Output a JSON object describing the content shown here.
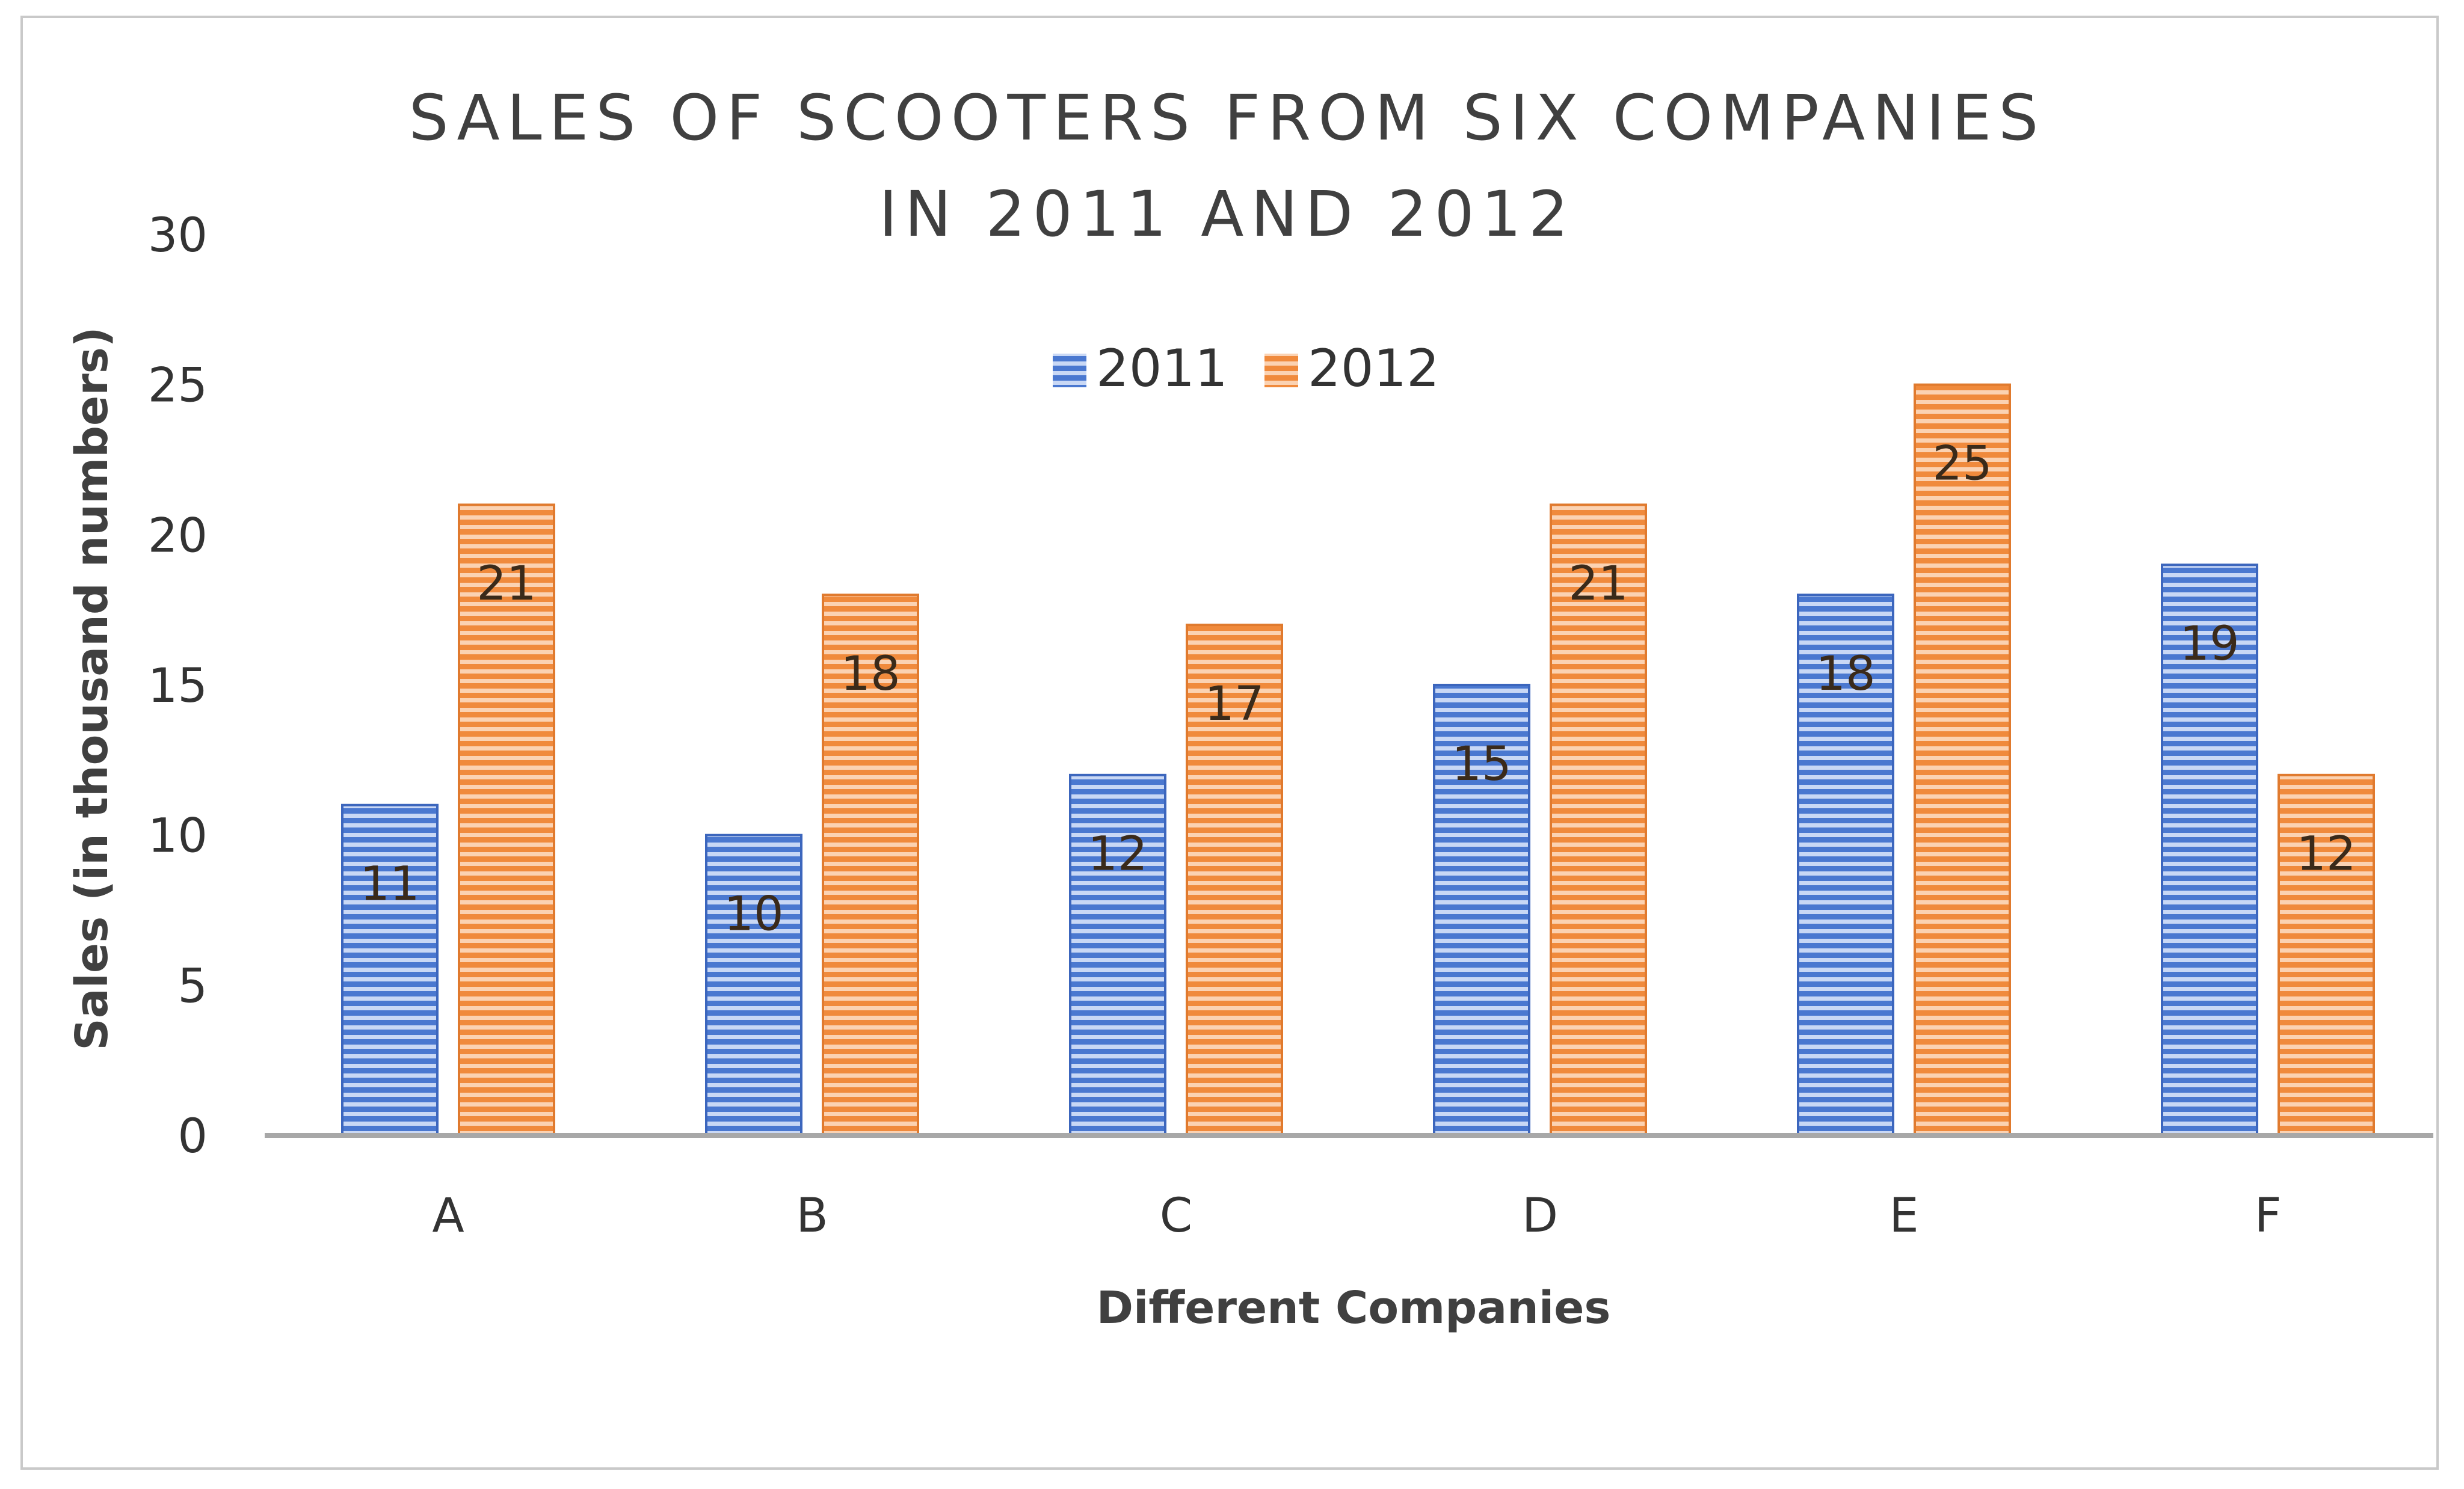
{
  "chart_data": {
    "type": "bar",
    "title_lines": [
      "SALES OF SCOOTERS FROM SIX COMPANIES",
      "IN 2011 AND 2012"
    ],
    "xlabel": "Different Companies",
    "ylabel": "Sales (in thousand numbers)",
    "categories": [
      "A",
      "B",
      "C",
      "D",
      "E",
      "F"
    ],
    "series": [
      {
        "name": "2011",
        "color": "#4a78d0",
        "values": [
          11,
          10,
          12,
          15,
          18,
          19
        ],
        "labels": [
          "11",
          "10",
          "12",
          "15",
          "18",
          "19"
        ]
      },
      {
        "name": "2012",
        "color": "#f08a3c",
        "values": [
          21,
          18,
          17,
          21,
          25,
          12
        ],
        "labels": [
          "21",
          "18",
          "17",
          "21",
          "25",
          "12"
        ]
      }
    ],
    "ylim": [
      0,
      30
    ],
    "yticks": [
      0,
      5,
      10,
      15,
      20,
      25,
      30
    ],
    "ytick_labels": [
      "0",
      "5",
      "10",
      "15",
      "20",
      "25",
      "30"
    ],
    "legend_position": "top-center",
    "grid": false,
    "data_labels": true
  }
}
